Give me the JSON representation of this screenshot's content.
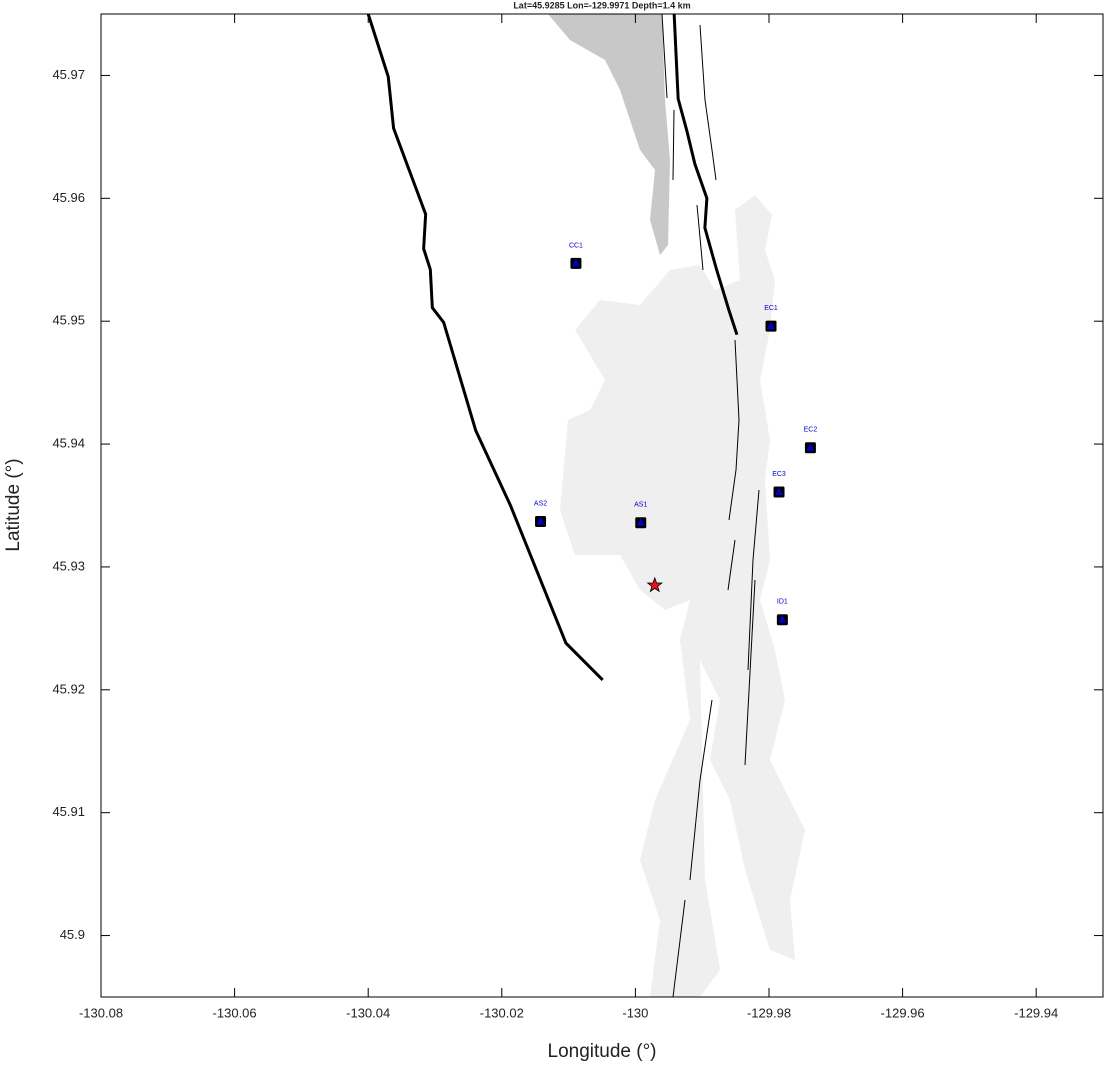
{
  "chart_data": {
    "type": "scatter",
    "title": "Lat=45.9285  Lon=-129.9971  Depth=1.4 km",
    "xlabel": "Longitude (°)",
    "ylabel": "Latitude (°)",
    "xlim": [
      -130.08,
      -129.93
    ],
    "ylim": [
      45.895,
      45.975
    ],
    "xticks": [
      -130.08,
      -130.06,
      -130.04,
      -130.02,
      -130,
      -129.98,
      -129.96,
      -129.94
    ],
    "yticks": [
      45.9,
      45.91,
      45.92,
      45.93,
      45.94,
      45.95,
      45.96,
      45.97
    ],
    "grid": false,
    "stations": {
      "color": "#0000cc",
      "names": [
        "CC1",
        "EC1",
        "EC2",
        "EC3",
        "AS2",
        "AS1",
        "ID1"
      ],
      "x": [
        -130.0089,
        -129.9797,
        -129.9738,
        -129.9785,
        -130.0142,
        -129.9992,
        -129.978
      ],
      "y": [
        45.9547,
        45.9496,
        45.9397,
        45.9361,
        45.9337,
        45.9336,
        45.9257
      ]
    },
    "event": {
      "color": "#e8141e",
      "x": -129.9971,
      "y": 45.9285
    },
    "lines": [
      {
        "color": "#000000",
        "x": [
          -130.04,
          -130.037,
          -130.0362,
          -130.0314,
          -130.0317,
          -130.0307,
          -130.0304,
          -130.0287,
          -130.0239,
          -130.0187,
          -130.0104,
          -130.0049
        ],
        "y": [
          45.975,
          45.9699,
          45.9657,
          45.9587,
          45.9559,
          45.9542,
          45.9511,
          45.9499,
          45.9411,
          45.935,
          45.9238,
          45.9208
        ]
      },
      {
        "color": "#000000",
        "x": [
          -129.9942,
          -129.9936,
          -129.9923,
          -129.9911,
          -129.9893,
          -129.9896,
          -129.9879,
          -129.986,
          -129.9848
        ],
        "y": [
          45.975,
          45.9681,
          45.9655,
          45.9628,
          45.96,
          45.9576,
          45.9543,
          45.9509,
          45.9489
        ]
      }
    ]
  }
}
